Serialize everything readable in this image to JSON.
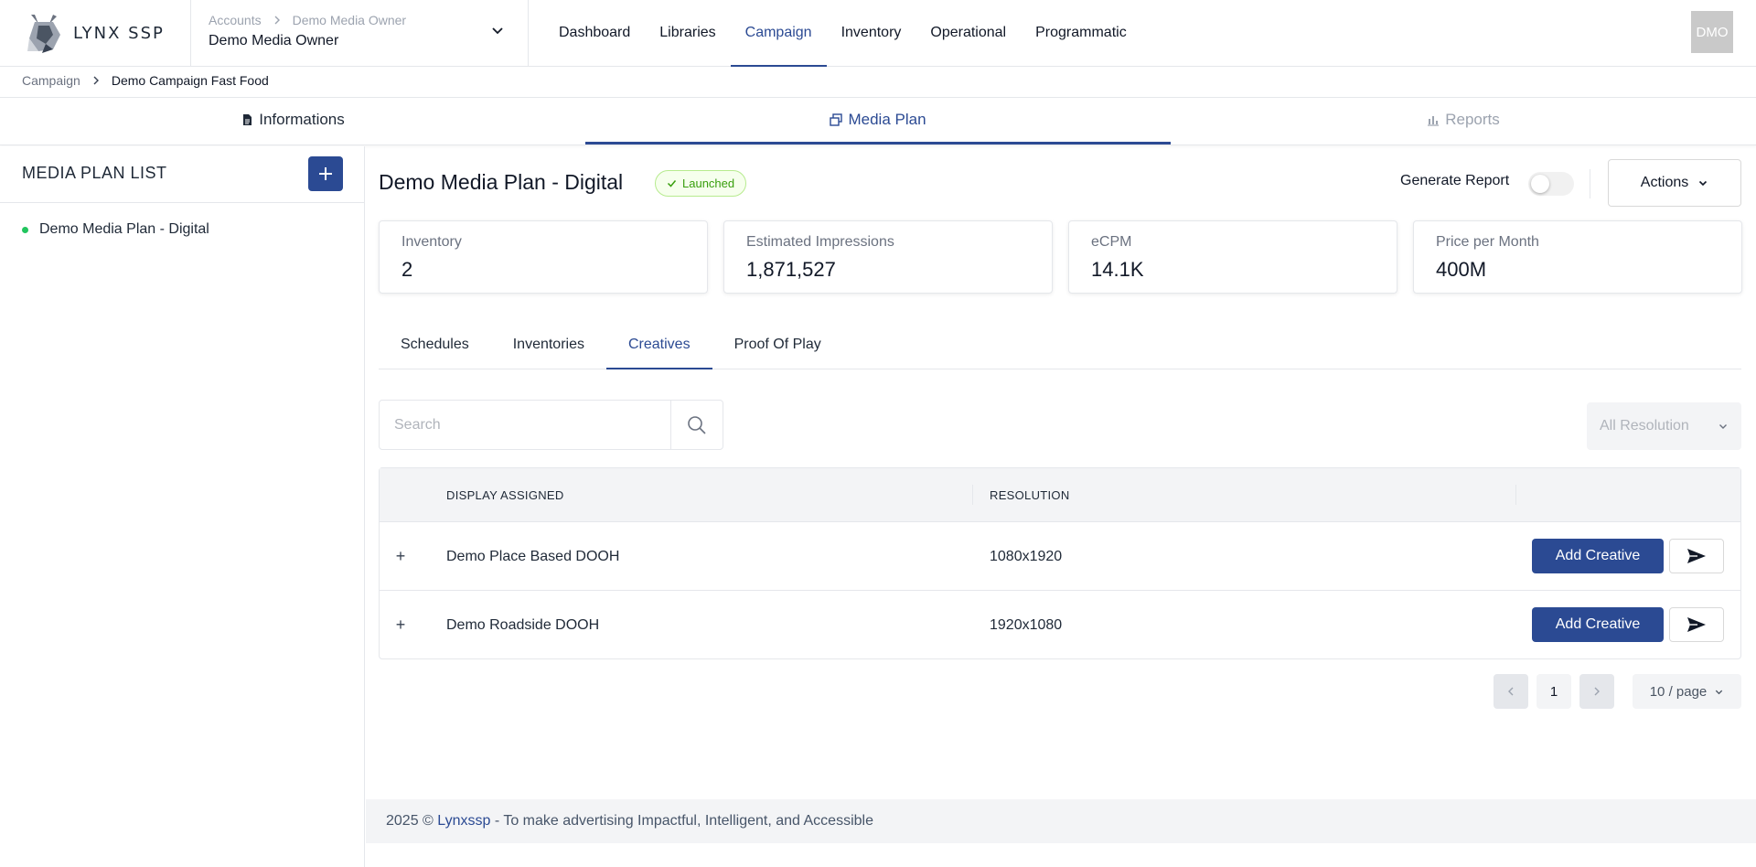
{
  "brand": {
    "name": "LYNX SSP"
  },
  "account": {
    "crumb_root": "Accounts",
    "crumb_current": "Demo Media Owner",
    "name": "Demo Media Owner"
  },
  "nav": {
    "items": [
      "Dashboard",
      "Libraries",
      "Campaign",
      "Inventory",
      "Operational",
      "Programmatic"
    ],
    "active": "Campaign"
  },
  "user": {
    "initials": "DMO"
  },
  "breadcrumb": {
    "root": "Campaign",
    "current": "Demo Campaign Fast Food"
  },
  "section_tabs": {
    "informations": "Informations",
    "media_plan": "Media Plan",
    "reports": "Reports"
  },
  "sidebar": {
    "title": "MEDIA PLAN LIST",
    "items": [
      {
        "label": "Demo Media Plan - Digital",
        "status_color": "#22c55e"
      }
    ]
  },
  "plan": {
    "title": "Demo Media Plan - Digital",
    "status": "Launched"
  },
  "header_actions": {
    "generate_report": "Generate Report",
    "generate_report_on": false,
    "actions": "Actions"
  },
  "stats": [
    {
      "label": "Inventory",
      "value": "2"
    },
    {
      "label": "Estimated Impressions",
      "value": "1,871,527"
    },
    {
      "label": "eCPM",
      "value": "14.1K"
    },
    {
      "label": "Price per Month",
      "value": "400M"
    }
  ],
  "sub_tabs": {
    "items": [
      "Schedules",
      "Inventories",
      "Creatives",
      "Proof Of Play"
    ],
    "active": "Creatives"
  },
  "search": {
    "placeholder": "Search",
    "value": ""
  },
  "resolution_filter": {
    "selected": "All Resolution"
  },
  "table": {
    "columns": [
      "DISPLAY ASSIGNED",
      "RESOLUTION"
    ],
    "rows": [
      {
        "display": "Demo Place Based DOOH",
        "resolution": "1080x1920",
        "action": "Add Creative"
      },
      {
        "display": "Demo Roadside DOOH",
        "resolution": "1920x1080",
        "action": "Add Creative"
      }
    ]
  },
  "pagination": {
    "current_page": "1",
    "page_size": "10 / page"
  },
  "footer": {
    "prefix": "2025 © ",
    "brand": "Lynxssp",
    "suffix": " - To make advertising Impactful, Intelligent, and Accessible"
  },
  "colors": {
    "accent": "#2b4a93",
    "success": "#22c55e",
    "badge_text": "#389e0d"
  }
}
